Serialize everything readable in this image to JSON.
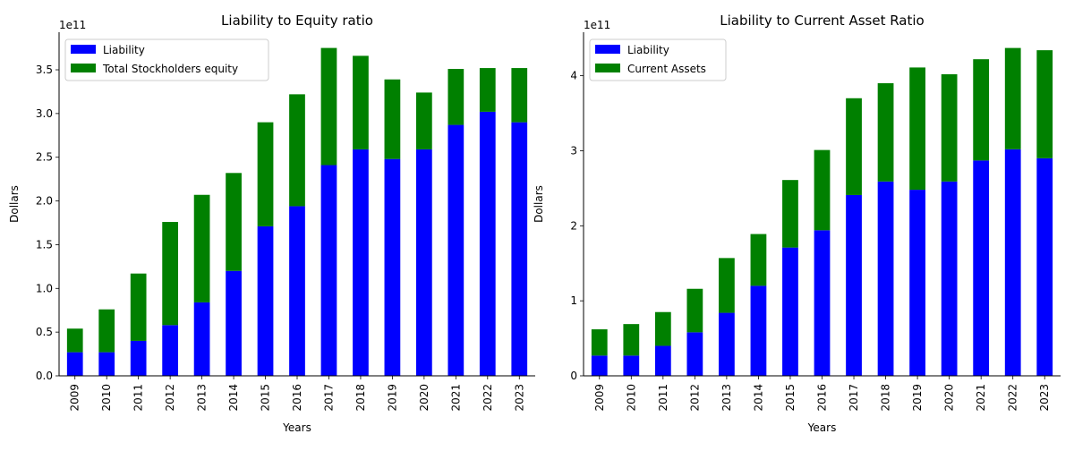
{
  "chart_data": [
    {
      "type": "bar",
      "stacked": true,
      "title": "Liability to Equity ratio",
      "xlabel": "Years",
      "ylabel": "Dollars",
      "y_offset_label": "1e11",
      "ylim": [
        0,
        3.93
      ],
      "yticks": [
        0,
        0.5,
        1.0,
        1.5,
        2.0,
        2.5,
        3.0,
        3.5
      ],
      "ytick_labels": [
        "0.0",
        "0.5",
        "1.0",
        "1.5",
        "2.0",
        "2.5",
        "3.0",
        "3.5"
      ],
      "legend_position": "top-left",
      "categories": [
        "2009",
        "2010",
        "2011",
        "2012",
        "2013",
        "2014",
        "2015",
        "2016",
        "2017",
        "2018",
        "2019",
        "2020",
        "2021",
        "2022",
        "2023"
      ],
      "series": [
        {
          "name": "Liability",
          "color": "#0000ff",
          "values": [
            0.27,
            0.27,
            0.4,
            0.58,
            0.84,
            1.2,
            1.71,
            1.94,
            2.41,
            2.59,
            2.48,
            2.59,
            2.87,
            3.02,
            2.9
          ]
        },
        {
          "name": "Total Stockholders equity",
          "color": "#008000",
          "values": [
            0.27,
            0.49,
            0.77,
            1.18,
            1.23,
            1.12,
            1.19,
            1.28,
            1.34,
            1.07,
            0.91,
            0.65,
            0.64,
            0.5,
            0.62
          ]
        }
      ]
    },
    {
      "type": "bar",
      "stacked": true,
      "title": "Liability to Current Asset Ratio",
      "xlabel": "Years",
      "ylabel": "Dollars",
      "y_offset_label": "1e11",
      "ylim": [
        0,
        4.58
      ],
      "yticks": [
        0,
        1,
        2,
        3,
        4
      ],
      "ytick_labels": [
        "0",
        "1",
        "2",
        "3",
        "4"
      ],
      "legend_position": "top-left",
      "categories": [
        "2009",
        "2010",
        "2011",
        "2012",
        "2013",
        "2014",
        "2015",
        "2016",
        "2017",
        "2018",
        "2019",
        "2020",
        "2021",
        "2022",
        "2023"
      ],
      "series": [
        {
          "name": "Liability",
          "color": "#0000ff",
          "values": [
            0.27,
            0.27,
            0.4,
            0.58,
            0.84,
            1.2,
            1.71,
            1.94,
            2.41,
            2.59,
            2.48,
            2.59,
            2.87,
            3.02,
            2.9
          ]
        },
        {
          "name": "Current Assets",
          "color": "#008000",
          "values": [
            0.35,
            0.42,
            0.45,
            0.58,
            0.73,
            0.69,
            0.9,
            1.07,
            1.29,
            1.31,
            1.63,
            1.43,
            1.35,
            1.35,
            1.44
          ]
        }
      ]
    }
  ]
}
